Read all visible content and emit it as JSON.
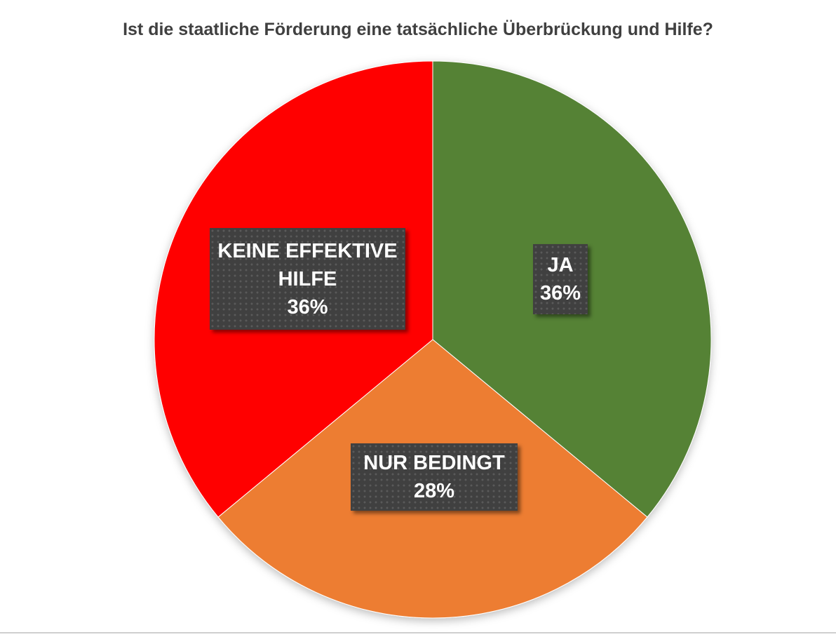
{
  "chart_data": {
    "type": "pie",
    "title": "Ist die staatliche Förderung eine tatsächliche Überbrückung und Hilfe?",
    "slices": [
      {
        "label": "JA",
        "value": 36,
        "value_label": "36%",
        "color": "#548235"
      },
      {
        "label": "NUR BEDINGT",
        "value": 28,
        "value_label": "28%",
        "color": "#ED7D31"
      },
      {
        "label": "KEINE EFFEKTIVE HILFE",
        "value": 36,
        "value_label": "36%",
        "color": "#FF0000"
      }
    ],
    "start_angle": "top, clockwise",
    "legend": "none"
  }
}
